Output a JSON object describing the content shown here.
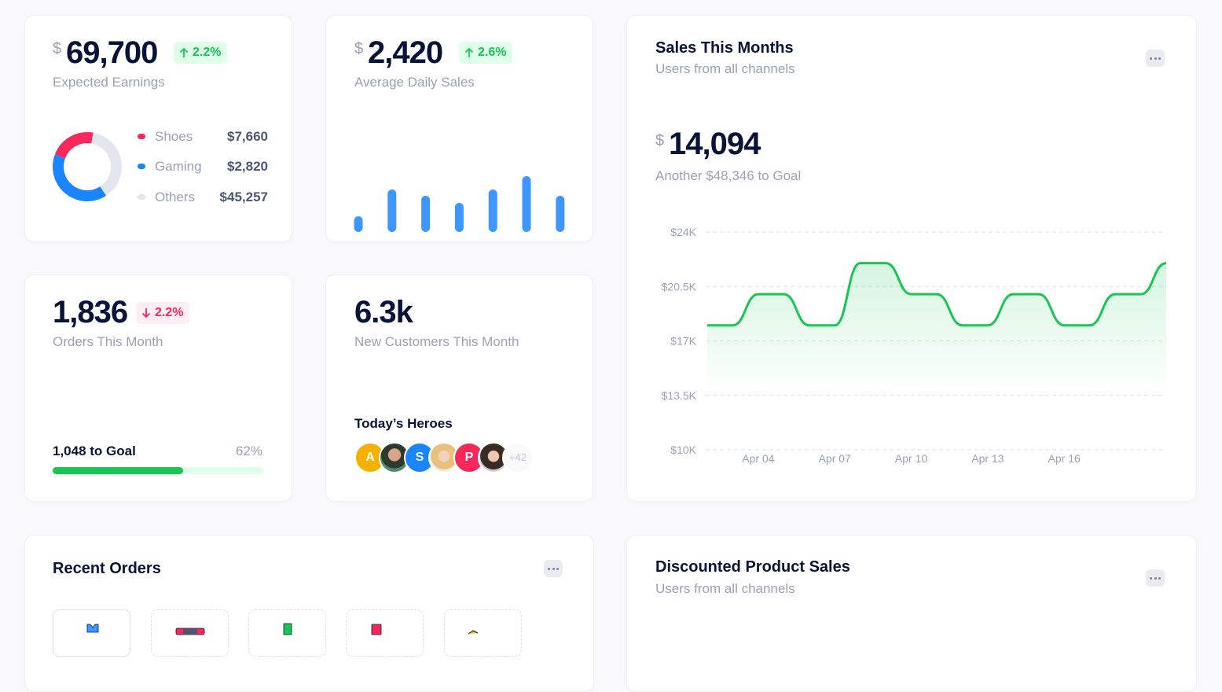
{
  "cards": {
    "earnings": {
      "currency": "$",
      "amount": "69,700",
      "change": "2.2%",
      "label": "Expected Earnings",
      "legend_amounts": [
        "$7,660",
        "$2,820",
        "$45,257"
      ]
    },
    "daily_sales": {
      "currency": "$",
      "amount": "2,420",
      "change": "2.6%",
      "label": "Average Daily Sales"
    },
    "orders": {
      "amount": "1,836",
      "change": "2.2%",
      "label": "Orders This Month",
      "goal": "1,048 to Goal",
      "progress": 62,
      "progress_label": "62%"
    },
    "customers": {
      "amount": "6.3k",
      "label": "New Customers This Month",
      "heroes_title": "Today’s Heroes",
      "initials": [
        "A",
        "S",
        "P"
      ],
      "more": "+42"
    },
    "sales": {
      "title": "Sales This Months",
      "subtitle": "Users from all channels",
      "currency": "$",
      "amount": "14,094",
      "note": "Another $48,346 to Goal"
    },
    "recent_orders": {
      "title": "Recent Orders"
    },
    "discounted": {
      "title": "Discounted Product Sales",
      "subtitle": "Users from all channels"
    }
  },
  "chart_data": [
    {
      "type": "donut",
      "categories": [
        "Shoes",
        "Gaming",
        "Others"
      ],
      "values": [
        22,
        40,
        38
      ],
      "colors": [
        "#f8285a",
        "#1b84ff",
        "#e4e6ef"
      ]
    },
    {
      "type": "bar",
      "values": [
        20,
        54,
        46,
        37,
        54,
        71,
        46
      ],
      "color": "#3e97ff"
    },
    {
      "type": "area",
      "categories": [
        null,
        null,
        "Apr 04",
        null,
        null,
        "Apr 07",
        null,
        null,
        "Apr 10",
        null,
        null,
        "Apr 13",
        null,
        null,
        "Apr 16",
        null,
        null,
        null,
        null
      ],
      "series": [
        {
          "color": "#17c653",
          "values": [
            18000,
            18000,
            20000,
            20000,
            18000,
            18000,
            22000,
            22000,
            20000,
            20000,
            18000,
            18000,
            20000,
            20000,
            18000,
            18000,
            20000,
            20000,
            22000
          ]
        }
      ],
      "ylim": [
        10000,
        24000
      ],
      "yticks": [
        {
          "value": 10000,
          "label": "$10K"
        },
        {
          "value": 13500,
          "label": "$13.5K"
        },
        {
          "value": 17000,
          "label": "$17K"
        },
        {
          "value": 20500,
          "label": "$20.5K"
        },
        {
          "value": 24000,
          "label": "$24K"
        }
      ],
      "grid": true
    }
  ]
}
